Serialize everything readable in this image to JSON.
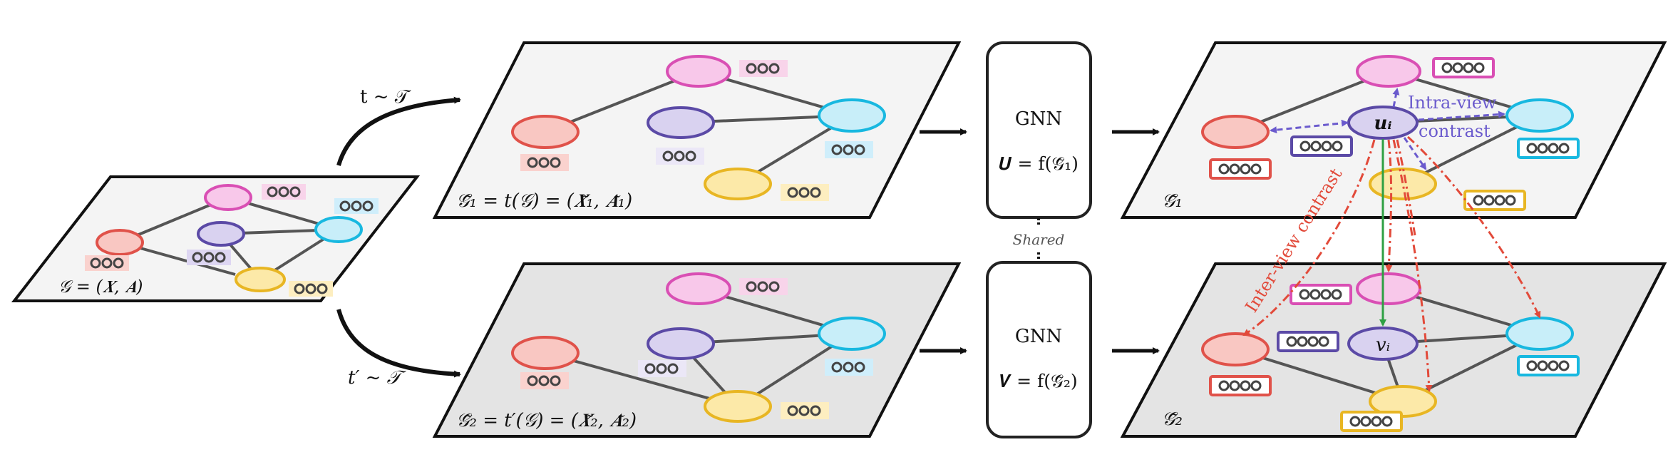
{
  "labels": {
    "original_graph": "𝒢 = (𝑿, 𝑨)",
    "aug_top": "t ~ 𝒯",
    "aug_bottom": "t′ ~ 𝒯",
    "view1_def": "𝒢̃₁ = t(𝒢) = (𝑿̃₁, 𝑨̃₁)",
    "view2_def": "𝒢̃₂ = t′(𝒢) = (𝑿̃₂, 𝑨̃₂)",
    "gnn_top": "GNN",
    "gnn_top_eq": "𝑼 = f(𝒢̃₁)",
    "gnn_bottom": "GNN",
    "gnn_bottom_eq": "𝑽 = f(𝒢̃₂)",
    "shared": "Shared",
    "out_top": "𝒢̃₁",
    "out_bottom": "𝒢̃₂",
    "u_i": "𝒖ᵢ",
    "v_i": "𝑣ᵢ",
    "intra_1": "Intra-view",
    "intra_2": "contrast",
    "inter": "Inter-view contrast"
  },
  "colors": {
    "red": "#e0524a",
    "pink": "#d94fb4",
    "purple": "#5b4aa6",
    "cyan": "#18b8e0",
    "yellow": "#e8b623",
    "intra": "#7a6ad0",
    "inter": "#e24a3a",
    "green": "#2ea043"
  }
}
